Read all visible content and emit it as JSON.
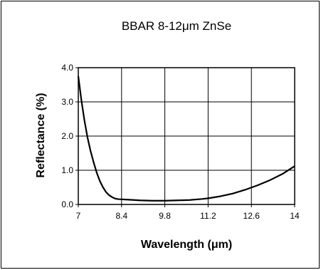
{
  "chart_data": {
    "type": "line",
    "title": "BBAR 8-12μm ZnSe",
    "xlabel": "Wavelength (μm)",
    "ylabel": "Reflectance (%)",
    "xlim": [
      7,
      14
    ],
    "ylim": [
      0,
      4.0
    ],
    "x_ticks": [
      "7",
      "8.4",
      "9.8",
      "11.2",
      "12.6",
      "14"
    ],
    "y_ticks": [
      "0.0",
      "1.0",
      "2.0",
      "3.0",
      "4.0"
    ],
    "grid": true,
    "legend": "none",
    "line_color": "#000000",
    "series": [
      {
        "x": [
          7.0,
          7.1,
          7.2,
          7.3,
          7.4,
          7.5,
          7.6,
          7.7,
          7.8,
          7.9,
          8.0,
          8.1,
          8.2,
          8.3,
          8.4,
          8.6,
          8.8,
          9.0,
          9.4,
          9.8,
          10.2,
          10.6,
          11.0,
          11.2,
          11.6,
          12.0,
          12.4,
          12.8,
          13.2,
          13.6,
          14.0
        ],
        "y": [
          3.75,
          3.05,
          2.45,
          1.95,
          1.55,
          1.22,
          0.92,
          0.68,
          0.5,
          0.36,
          0.27,
          0.21,
          0.17,
          0.155,
          0.15,
          0.14,
          0.13,
          0.12,
          0.11,
          0.11,
          0.12,
          0.13,
          0.16,
          0.18,
          0.24,
          0.32,
          0.43,
          0.56,
          0.71,
          0.89,
          1.12
        ]
      }
    ]
  }
}
